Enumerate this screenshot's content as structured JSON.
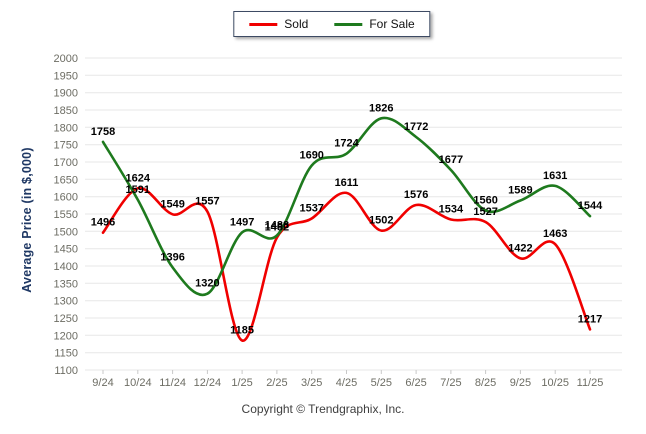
{
  "chart_data": {
    "type": "line",
    "title": "",
    "xlabel": "",
    "ylabel": "Average Price (in $,000)",
    "ylim": [
      1100,
      2000
    ],
    "ytick_step": 50,
    "grid": true,
    "legend_position": "top-center",
    "categories": [
      "9/24",
      "10/24",
      "11/24",
      "12/24",
      "1/25",
      "2/25",
      "3/25",
      "4/25",
      "5/25",
      "6/25",
      "7/25",
      "8/25",
      "9/25",
      "10/25",
      "11/25"
    ],
    "series": [
      {
        "name": "Sold",
        "color": "#f00000",
        "values": [
          1496,
          1624,
          1549,
          1557,
          1185,
          1482,
          1537,
          1611,
          1502,
          1576,
          1534,
          1527,
          1422,
          1463,
          1217
        ]
      },
      {
        "name": "For Sale",
        "color": "#1e7a1e",
        "values": [
          1758,
          1591,
          1396,
          1320,
          1497,
          1488,
          1690,
          1724,
          1826,
          1772,
          1677,
          1560,
          1589,
          1631,
          1544
        ]
      }
    ]
  },
  "footer": {
    "copyright": "Copyright © Trendgraphix, Inc."
  },
  "colors": {
    "grid": "#e7e7e7",
    "tick_text": "#6d6d64",
    "axis_title": "#1f3864",
    "label_text": "#000000",
    "legend_border": "#3d4a63",
    "x_tick_mark": "#c9c9c9"
  }
}
